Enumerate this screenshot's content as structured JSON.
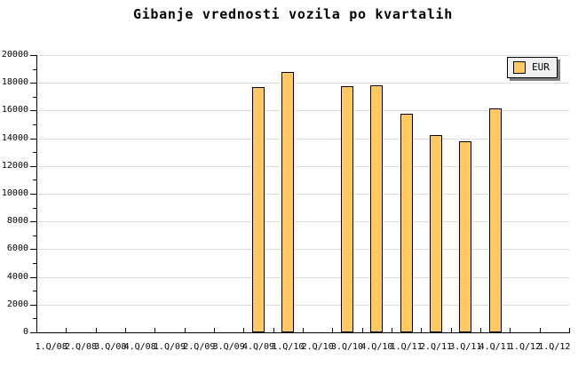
{
  "title": "Gibanje vrednosti vozila po kvartalih",
  "legend": {
    "label": "EUR",
    "swatch_color": "#FFC861",
    "background": "#F0F0F0",
    "shadow_color": "#808080"
  },
  "colors": {
    "background": "#FFFFFF",
    "bar_fill": "#FFC861",
    "bar_border": "#000000",
    "gridline": "#DCDCDC",
    "axis": "#000000",
    "text": "#000000"
  },
  "chart_data": {
    "type": "bar",
    "title": "Gibanje vrednosti vozila po kvartalih",
    "xlabel": "",
    "ylabel": "",
    "categories": [
      "1.Q/08",
      "2.Q/08",
      "3.Q/08",
      "4.Q/08",
      "1.Q/09",
      "2.Q/09",
      "3.Q/09",
      "4.Q/09",
      "1.Q/10",
      "2.Q/10",
      "3.Q/10",
      "4.Q/10",
      "1.Q/11",
      "2.Q/11",
      "3.Q/11",
      "4.Q/11",
      "1.Q/12",
      "1.Q/12"
    ],
    "series": [
      {
        "name": "EUR",
        "values": [
          null,
          null,
          null,
          null,
          null,
          null,
          null,
          17700,
          18800,
          null,
          17750,
          17800,
          15800,
          14250,
          13800,
          16150,
          null,
          null
        ]
      }
    ],
    "ylim": [
      0,
      20000
    ],
    "ytick_interval": 2000,
    "yminor_tick_interval": 1000,
    "grid": true,
    "legend_position": "top-right"
  }
}
